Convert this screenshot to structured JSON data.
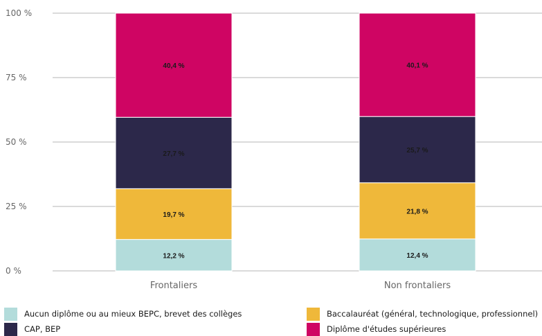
{
  "chart_data": {
    "type": "bar",
    "stacked": true,
    "categories": [
      "Frontaliers",
      "Non frontaliers"
    ],
    "series": [
      {
        "name": "Aucun diplôme ou au mieux BEPC, brevet des collèges",
        "values": [
          12.2,
          12.4
        ],
        "labels": [
          "12,2 %",
          "12,4 %"
        ],
        "color": "#b3dcdb"
      },
      {
        "name": "Baccalauréat (général, technologique, professionnel)",
        "values": [
          19.7,
          21.8
        ],
        "labels": [
          "19,7 %",
          "21,8 %"
        ],
        "color": "#efb83a"
      },
      {
        "name": "CAP, BEP",
        "values": [
          27.7,
          25.7
        ],
        "labels": [
          "27,7 %",
          "25,7 %"
        ],
        "color": "#2c284a"
      },
      {
        "name": "Diplôme d'études supérieures",
        "values": [
          40.4,
          40.1
        ],
        "labels": [
          "40,4 %",
          "40,1 %"
        ],
        "color": "#cf0563"
      }
    ],
    "stack_order": [
      0,
      1,
      2,
      3
    ],
    "ylim": [
      0,
      100
    ],
    "yticks": [
      0,
      25,
      50,
      75,
      100
    ],
    "ytick_labels": [
      "0 %",
      "25 %",
      "50 %",
      "75 %",
      "100 %"
    ],
    "grid": true,
    "legend_position": "bottom"
  },
  "legend": {
    "items": [
      {
        "label": "Aucun diplôme ou au mieux BEPC, brevet des collèges",
        "color": "#b3dcdb"
      },
      {
        "label": "Baccalauréat (général, technologique, professionnel)",
        "color": "#efb83a"
      },
      {
        "label": "CAP, BEP",
        "color": "#2c284a"
      },
      {
        "label": "Diplôme d'études supérieures",
        "color": "#cf0563"
      }
    ]
  }
}
